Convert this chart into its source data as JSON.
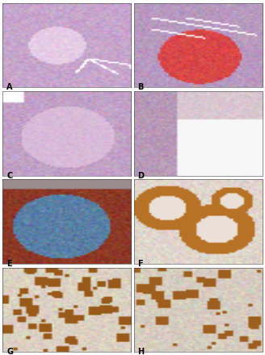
{
  "figure_width": 3.28,
  "figure_height": 4.4,
  "dpi": 100,
  "bg_color": "#ffffff",
  "label_fontsize": 7,
  "panels": [
    "A",
    "B",
    "C",
    "D",
    "E",
    "F",
    "G",
    "H"
  ],
  "panel_colors": {
    "A": {
      "bg": [
        0.78,
        0.65,
        0.8
      ],
      "feat": [
        0.9,
        0.8,
        0.9
      ],
      "feat2": [
        1.0,
        1.0,
        1.0
      ]
    },
    "B": {
      "bg": [
        0.72,
        0.6,
        0.75
      ],
      "feat": [
        0.85,
        0.28,
        0.28
      ],
      "feat2": [
        1.0,
        1.0,
        1.0
      ]
    },
    "C": {
      "bg": [
        0.76,
        0.63,
        0.78
      ],
      "feat": [
        0.85,
        0.73,
        0.85
      ],
      "feat2": [
        1.0,
        1.0,
        1.0
      ]
    },
    "D": {
      "bg": [
        0.97,
        0.97,
        0.98
      ],
      "feat": [
        0.72,
        0.6,
        0.72
      ],
      "feat2": [
        0.85,
        0.78,
        0.82
      ]
    },
    "E": {
      "bg": [
        0.55,
        0.22,
        0.15
      ],
      "feat": [
        0.35,
        0.5,
        0.65
      ],
      "feat2": [
        0.6,
        0.55,
        0.55
      ]
    },
    "F": {
      "bg": [
        0.88,
        0.84,
        0.8
      ],
      "feat": [
        0.72,
        0.45,
        0.15
      ],
      "feat2": [
        0.92,
        0.88,
        0.84
      ]
    },
    "G": {
      "bg": [
        0.86,
        0.82,
        0.76
      ],
      "feat": [
        0.6,
        0.35,
        0.1
      ],
      "feat2": [
        0.8,
        0.76,
        0.7
      ]
    },
    "H": {
      "bg": [
        0.84,
        0.8,
        0.75
      ],
      "feat": [
        0.62,
        0.37,
        0.12
      ],
      "feat2": [
        0.78,
        0.74,
        0.68
      ]
    }
  }
}
